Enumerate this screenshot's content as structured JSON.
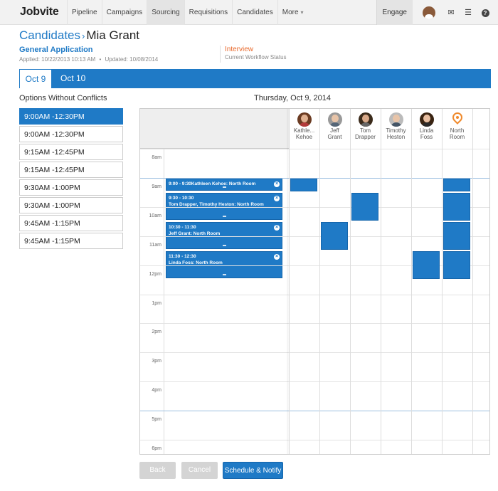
{
  "nav": {
    "logo": "Jobvite",
    "items": [
      "Pipeline",
      "Campaigns",
      "Sourcing",
      "Requisitions",
      "Candidates",
      "More"
    ],
    "more_caret": "▾",
    "engage": "Engage",
    "icons": [
      "mail-icon",
      "list-icon",
      "help-icon"
    ]
  },
  "header": {
    "breadcrumb": "Candidates",
    "separator": "›",
    "candidate_name": "Mia Grant",
    "application": "General Application",
    "applied": "Applied: 10/22/2013 10:13 AM",
    "bullet": "•",
    "updated": "Updated: 10/08/2014",
    "workflow_status": "Interview",
    "workflow_label": "Current Workflow Status"
  },
  "tabs": [
    "Oct 9",
    "Oct 10"
  ],
  "options": {
    "title": "Options Without Conflicts",
    "items": [
      "9:00AM -12:30PM",
      "9:00AM -12:30PM",
      "9:15AM -12:45PM",
      "9:15AM -12:45PM",
      "9:30AM -1:00PM",
      "9:30AM -1:00PM",
      "9:45AM -1:15PM",
      "9:45AM -1:15PM"
    ],
    "selected_index": 0
  },
  "calendar": {
    "date_title": "Thursday, Oct 9, 2014",
    "times": [
      "8am",
      "9am",
      "10am",
      "11am",
      "12pm",
      "1pm",
      "2pm",
      "3pm",
      "4pm",
      "5pm",
      "6pm"
    ],
    "people": [
      {
        "name1": "Kathle...",
        "name2": "Kehoe",
        "skin": "#e0b090",
        "hair": "#6b3b22",
        "shirt": "#b33a3a"
      },
      {
        "name1": "Jeff",
        "name2": "Grant",
        "skin": "#e8c4a8",
        "hair": "#999999",
        "shirt": "#556677"
      },
      {
        "name1": "Tom",
        "name2": "Drapper",
        "skin": "#d8a888",
        "hair": "#3a2a1a",
        "shirt": "#666666"
      },
      {
        "name1": "Timothy",
        "name2": "Heston",
        "skin": "#e8c4a8",
        "hair": "#bbbbbb",
        "shirt": "#445566"
      },
      {
        "name1": "Linda",
        "name2": "Foss",
        "skin": "#e8bea0",
        "hair": "#3a2412",
        "shirt": "#2a2a2a"
      },
      {
        "name1": "North",
        "name2": "Room",
        "is_room": true
      }
    ],
    "events": [
      {
        "line1": "9:00 - 9:30Kathleen Kehoe: North Room",
        "line2": "",
        "start": 9.0,
        "end": 9.5
      },
      {
        "line1": "9:30 - 10:30",
        "line2": "Tom Drapper, Timothy Heston: North Room",
        "start": 9.5,
        "end": 10.5
      },
      {
        "line1": "10:30 - 11:30",
        "line2": "Jeff Grant: North Room",
        "start": 10.5,
        "end": 11.5
      },
      {
        "line1": "11:30 - 12:30",
        "line2": "Linda Foss: North Room",
        "start": 11.5,
        "end": 12.5
      }
    ],
    "busy_blocks": [
      {
        "col": 0,
        "start": 9.0,
        "end": 9.5
      },
      {
        "col": 5,
        "start": 9.0,
        "end": 9.5
      },
      {
        "col": 2,
        "start": 9.5,
        "end": 10.5
      },
      {
        "col": 5,
        "start": 9.5,
        "end": 10.5
      },
      {
        "col": 1,
        "start": 10.5,
        "end": 11.5
      },
      {
        "col": 5,
        "start": 10.5,
        "end": 11.5
      },
      {
        "col": 4,
        "start": 11.5,
        "end": 12.5
      },
      {
        "col": 5,
        "start": 11.5,
        "end": 12.5
      }
    ],
    "close_glyph": "×"
  },
  "buttons": {
    "back": "Back",
    "cancel": "Cancel",
    "schedule": "Schedule & Notify"
  },
  "colors": {
    "primary": "#1f7ac6",
    "status": "#e8692c",
    "room_pin": "#f08a2c"
  }
}
